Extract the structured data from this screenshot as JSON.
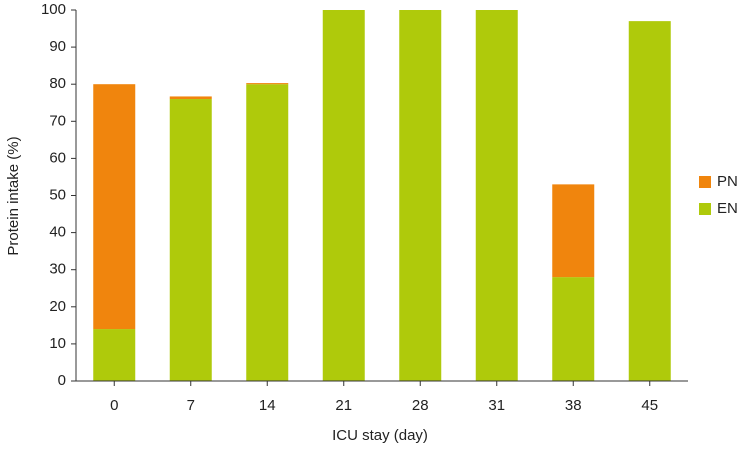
{
  "chart_data": {
    "type": "stacked_bar",
    "categories": [
      "0",
      "7",
      "14",
      "21",
      "28",
      "31",
      "38",
      "45"
    ],
    "series": [
      {
        "name": "EN",
        "color": "#afca0b",
        "values": [
          14,
          76,
          80,
          100,
          100,
          100,
          28,
          97
        ]
      },
      {
        "name": "PN",
        "color": "#f0850d",
        "values": [
          66,
          0.7,
          0.3,
          0,
          0,
          0,
          25,
          0
        ]
      }
    ],
    "ylim": [
      0,
      100
    ],
    "yticks": [
      0,
      10,
      20,
      30,
      40,
      50,
      60,
      70,
      80,
      90,
      100
    ],
    "ylabel": "Protein intake (%)",
    "xlabel": "ICU stay (day)",
    "legend": "right"
  }
}
